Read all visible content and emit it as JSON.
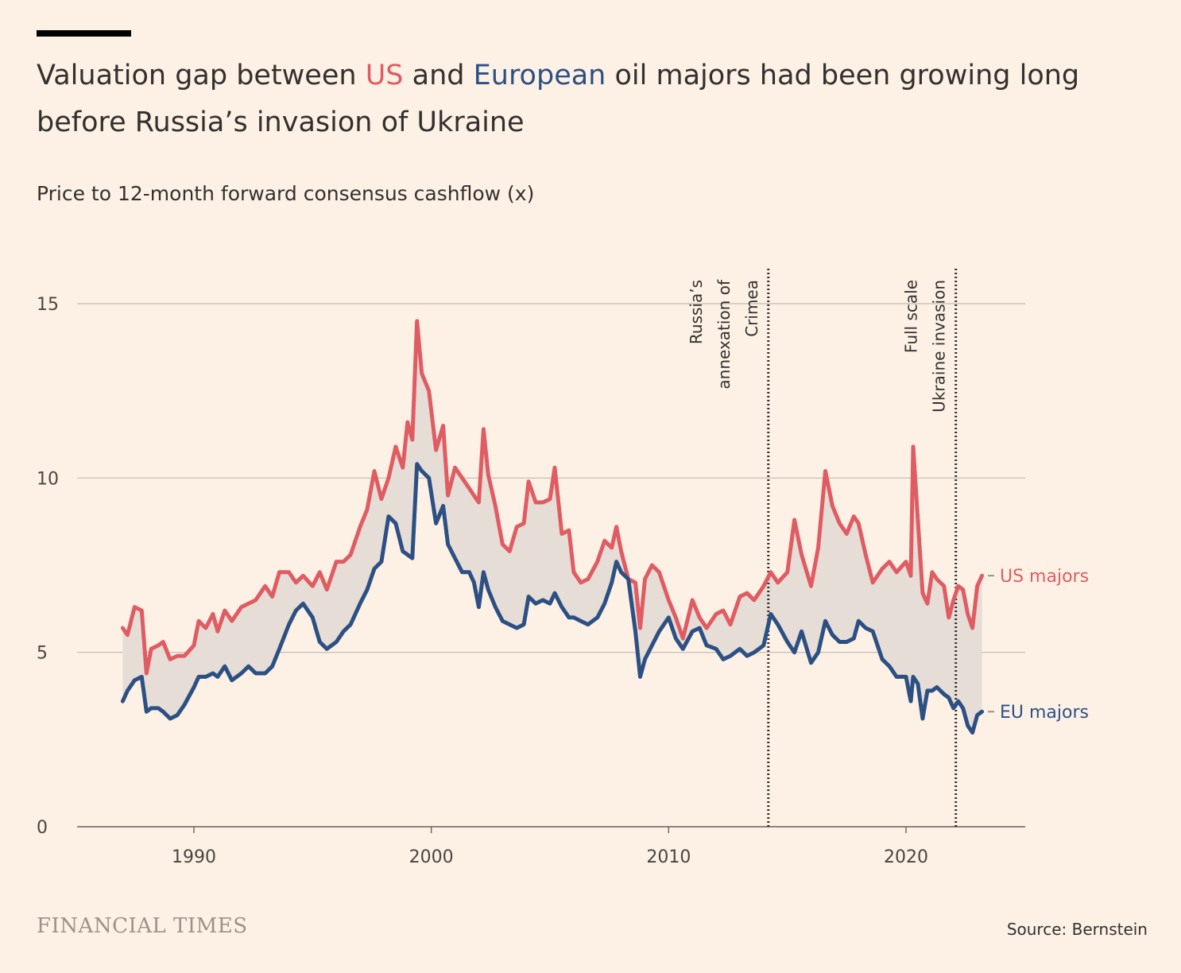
{
  "header": {
    "title_part1": "Valuation gap between ",
    "title_us": "US",
    "title_part2": " and ",
    "title_eu": "European",
    "title_part3": " oil majors had been growing long before Russia’s invasion of Ukraine",
    "subtitle": "Price to 12-month forward consensus cashflow (x)"
  },
  "footer": {
    "brand": "FINANCIAL TIMES",
    "source": "Source: Bernstein"
  },
  "colors": {
    "us": "#e05c63",
    "eu": "#2c5083",
    "gap_fill": "#e6ddd6",
    "grid": "#c2b9b0",
    "axis": "#66605c",
    "annotation_line": "#33302e"
  },
  "chart_data": {
    "type": "line",
    "ylim": [
      0,
      15
    ],
    "xlim": [
      1985,
      2025
    ],
    "yticks": [
      0,
      5,
      10,
      15
    ],
    "xticks": [
      1990,
      2000,
      2010,
      2020
    ],
    "grid": true,
    "area_between_series": true,
    "series": [
      {
        "name": "US majors",
        "color": "#e05c63",
        "points": [
          [
            1987.0,
            5.7
          ],
          [
            1987.2,
            5.5
          ],
          [
            1987.5,
            6.3
          ],
          [
            1987.8,
            6.2
          ],
          [
            1988.0,
            4.4
          ],
          [
            1988.2,
            5.1
          ],
          [
            1988.5,
            5.2
          ],
          [
            1988.7,
            5.3
          ],
          [
            1989.0,
            4.8
          ],
          [
            1989.3,
            4.9
          ],
          [
            1989.6,
            4.9
          ],
          [
            1990.0,
            5.2
          ],
          [
            1990.2,
            5.9
          ],
          [
            1990.5,
            5.7
          ],
          [
            1990.8,
            6.1
          ],
          [
            1991.0,
            5.6
          ],
          [
            1991.3,
            6.2
          ],
          [
            1991.6,
            5.9
          ],
          [
            1992.0,
            6.3
          ],
          [
            1992.3,
            6.4
          ],
          [
            1992.6,
            6.5
          ],
          [
            1993.0,
            6.9
          ],
          [
            1993.3,
            6.6
          ],
          [
            1993.6,
            7.3
          ],
          [
            1994.0,
            7.3
          ],
          [
            1994.3,
            7.0
          ],
          [
            1994.6,
            7.2
          ],
          [
            1995.0,
            6.9
          ],
          [
            1995.3,
            7.3
          ],
          [
            1995.6,
            6.8
          ],
          [
            1996.0,
            7.6
          ],
          [
            1996.3,
            7.6
          ],
          [
            1996.6,
            7.8
          ],
          [
            1997.0,
            8.6
          ],
          [
            1997.3,
            9.1
          ],
          [
            1997.6,
            10.2
          ],
          [
            1997.9,
            9.4
          ],
          [
            1998.2,
            10.0
          ],
          [
            1998.5,
            10.9
          ],
          [
            1998.8,
            10.3
          ],
          [
            1999.0,
            11.6
          ],
          [
            1999.2,
            11.1
          ],
          [
            1999.4,
            14.5
          ],
          [
            1999.6,
            13.0
          ],
          [
            1999.9,
            12.5
          ],
          [
            2000.2,
            10.8
          ],
          [
            2000.5,
            11.5
          ],
          [
            2000.7,
            9.5
          ],
          [
            2001.0,
            10.3
          ],
          [
            2001.3,
            10.0
          ],
          [
            2001.6,
            9.7
          ],
          [
            2001.8,
            9.5
          ],
          [
            2002.0,
            9.3
          ],
          [
            2002.2,
            11.4
          ],
          [
            2002.4,
            10.1
          ],
          [
            2002.7,
            9.2
          ],
          [
            2003.0,
            8.1
          ],
          [
            2003.3,
            7.9
          ],
          [
            2003.6,
            8.6
          ],
          [
            2003.9,
            8.7
          ],
          [
            2004.1,
            9.9
          ],
          [
            2004.4,
            9.3
          ],
          [
            2004.7,
            9.3
          ],
          [
            2005.0,
            9.4
          ],
          [
            2005.2,
            10.3
          ],
          [
            2005.5,
            8.4
          ],
          [
            2005.8,
            8.5
          ],
          [
            2006.0,
            7.3
          ],
          [
            2006.3,
            7.0
          ],
          [
            2006.6,
            7.1
          ],
          [
            2007.0,
            7.6
          ],
          [
            2007.3,
            8.2
          ],
          [
            2007.6,
            8.0
          ],
          [
            2007.8,
            8.6
          ],
          [
            2008.0,
            7.9
          ],
          [
            2008.3,
            7.1
          ],
          [
            2008.6,
            7.0
          ],
          [
            2008.8,
            5.7
          ],
          [
            2009.0,
            7.1
          ],
          [
            2009.3,
            7.5
          ],
          [
            2009.6,
            7.3
          ],
          [
            2010.0,
            6.5
          ],
          [
            2010.3,
            6.0
          ],
          [
            2010.6,
            5.4
          ],
          [
            2011.0,
            6.5
          ],
          [
            2011.3,
            6.0
          ],
          [
            2011.6,
            5.7
          ],
          [
            2012.0,
            6.1
          ],
          [
            2012.3,
            6.2
          ],
          [
            2012.6,
            5.8
          ],
          [
            2013.0,
            6.6
          ],
          [
            2013.3,
            6.7
          ],
          [
            2013.6,
            6.5
          ],
          [
            2014.0,
            6.9
          ],
          [
            2014.3,
            7.3
          ],
          [
            2014.6,
            7.0
          ],
          [
            2015.0,
            7.3
          ],
          [
            2015.3,
            8.8
          ],
          [
            2015.6,
            7.8
          ],
          [
            2016.0,
            6.9
          ],
          [
            2016.3,
            8.0
          ],
          [
            2016.6,
            10.2
          ],
          [
            2016.9,
            9.2
          ],
          [
            2017.2,
            8.7
          ],
          [
            2017.5,
            8.4
          ],
          [
            2017.8,
            8.9
          ],
          [
            2018.0,
            8.7
          ],
          [
            2018.3,
            7.8
          ],
          [
            2018.6,
            7.0
          ],
          [
            2019.0,
            7.4
          ],
          [
            2019.3,
            7.6
          ],
          [
            2019.6,
            7.3
          ],
          [
            2020.0,
            7.6
          ],
          [
            2020.2,
            7.2
          ],
          [
            2020.3,
            10.9
          ],
          [
            2020.5,
            8.8
          ],
          [
            2020.7,
            6.7
          ],
          [
            2020.9,
            6.4
          ],
          [
            2021.1,
            7.3
          ],
          [
            2021.3,
            7.1
          ],
          [
            2021.6,
            6.9
          ],
          [
            2021.8,
            6.0
          ],
          [
            2022.0,
            6.5
          ],
          [
            2022.2,
            6.9
          ],
          [
            2022.4,
            6.8
          ],
          [
            2022.6,
            6.1
          ],
          [
            2022.8,
            5.7
          ],
          [
            2023.0,
            6.9
          ],
          [
            2023.2,
            7.2
          ]
        ]
      },
      {
        "name": "EU majors",
        "color": "#2c5083",
        "points": [
          [
            1987.0,
            3.6
          ],
          [
            1987.2,
            3.9
          ],
          [
            1987.5,
            4.2
          ],
          [
            1987.8,
            4.3
          ],
          [
            1988.0,
            3.3
          ],
          [
            1988.2,
            3.4
          ],
          [
            1988.5,
            3.4
          ],
          [
            1988.7,
            3.3
          ],
          [
            1989.0,
            3.1
          ],
          [
            1989.3,
            3.2
          ],
          [
            1989.6,
            3.5
          ],
          [
            1990.0,
            4.0
          ],
          [
            1990.2,
            4.3
          ],
          [
            1990.5,
            4.3
          ],
          [
            1990.8,
            4.4
          ],
          [
            1991.0,
            4.3
          ],
          [
            1991.3,
            4.6
          ],
          [
            1991.6,
            4.2
          ],
          [
            1992.0,
            4.4
          ],
          [
            1992.3,
            4.6
          ],
          [
            1992.6,
            4.4
          ],
          [
            1993.0,
            4.4
          ],
          [
            1993.3,
            4.6
          ],
          [
            1993.6,
            5.1
          ],
          [
            1994.0,
            5.8
          ],
          [
            1994.3,
            6.2
          ],
          [
            1994.6,
            6.4
          ],
          [
            1995.0,
            6.0
          ],
          [
            1995.3,
            5.3
          ],
          [
            1995.6,
            5.1
          ],
          [
            1996.0,
            5.3
          ],
          [
            1996.3,
            5.6
          ],
          [
            1996.6,
            5.8
          ],
          [
            1997.0,
            6.4
          ],
          [
            1997.3,
            6.8
          ],
          [
            1997.6,
            7.4
          ],
          [
            1997.9,
            7.6
          ],
          [
            1998.2,
            8.9
          ],
          [
            1998.5,
            8.7
          ],
          [
            1998.8,
            7.9
          ],
          [
            1999.0,
            7.8
          ],
          [
            1999.2,
            7.7
          ],
          [
            1999.4,
            10.4
          ],
          [
            1999.6,
            10.2
          ],
          [
            1999.9,
            10.0
          ],
          [
            2000.2,
            8.7
          ],
          [
            2000.5,
            9.2
          ],
          [
            2000.7,
            8.1
          ],
          [
            2001.0,
            7.7
          ],
          [
            2001.3,
            7.3
          ],
          [
            2001.6,
            7.3
          ],
          [
            2001.8,
            7.0
          ],
          [
            2002.0,
            6.3
          ],
          [
            2002.2,
            7.3
          ],
          [
            2002.4,
            6.8
          ],
          [
            2002.7,
            6.3
          ],
          [
            2003.0,
            5.9
          ],
          [
            2003.3,
            5.8
          ],
          [
            2003.6,
            5.7
          ],
          [
            2003.9,
            5.8
          ],
          [
            2004.1,
            6.6
          ],
          [
            2004.4,
            6.4
          ],
          [
            2004.7,
            6.5
          ],
          [
            2005.0,
            6.4
          ],
          [
            2005.2,
            6.7
          ],
          [
            2005.5,
            6.3
          ],
          [
            2005.8,
            6.0
          ],
          [
            2006.0,
            6.0
          ],
          [
            2006.3,
            5.9
          ],
          [
            2006.6,
            5.8
          ],
          [
            2007.0,
            6.0
          ],
          [
            2007.3,
            6.4
          ],
          [
            2007.6,
            7.0
          ],
          [
            2007.8,
            7.6
          ],
          [
            2008.0,
            7.3
          ],
          [
            2008.3,
            7.1
          ],
          [
            2008.6,
            5.6
          ],
          [
            2008.8,
            4.3
          ],
          [
            2009.0,
            4.8
          ],
          [
            2009.3,
            5.2
          ],
          [
            2009.6,
            5.6
          ],
          [
            2010.0,
            6.0
          ],
          [
            2010.3,
            5.4
          ],
          [
            2010.6,
            5.1
          ],
          [
            2011.0,
            5.6
          ],
          [
            2011.3,
            5.7
          ],
          [
            2011.6,
            5.2
          ],
          [
            2012.0,
            5.1
          ],
          [
            2012.3,
            4.8
          ],
          [
            2012.6,
            4.9
          ],
          [
            2013.0,
            5.1
          ],
          [
            2013.3,
            4.9
          ],
          [
            2013.6,
            5.0
          ],
          [
            2014.0,
            5.2
          ],
          [
            2014.3,
            6.1
          ],
          [
            2014.6,
            5.8
          ],
          [
            2015.0,
            5.3
          ],
          [
            2015.3,
            5.0
          ],
          [
            2015.6,
            5.6
          ],
          [
            2016.0,
            4.7
          ],
          [
            2016.3,
            5.0
          ],
          [
            2016.6,
            5.9
          ],
          [
            2016.9,
            5.5
          ],
          [
            2017.2,
            5.3
          ],
          [
            2017.5,
            5.3
          ],
          [
            2017.8,
            5.4
          ],
          [
            2018.0,
            5.9
          ],
          [
            2018.3,
            5.7
          ],
          [
            2018.6,
            5.6
          ],
          [
            2019.0,
            4.8
          ],
          [
            2019.3,
            4.6
          ],
          [
            2019.6,
            4.3
          ],
          [
            2020.0,
            4.3
          ],
          [
            2020.2,
            3.6
          ],
          [
            2020.3,
            4.3
          ],
          [
            2020.5,
            4.1
          ],
          [
            2020.7,
            3.1
          ],
          [
            2020.9,
            3.9
          ],
          [
            2021.1,
            3.9
          ],
          [
            2021.3,
            4.0
          ],
          [
            2021.6,
            3.8
          ],
          [
            2021.8,
            3.7
          ],
          [
            2022.0,
            3.4
          ],
          [
            2022.2,
            3.6
          ],
          [
            2022.4,
            3.4
          ],
          [
            2022.6,
            2.9
          ],
          [
            2022.8,
            2.7
          ],
          [
            2023.0,
            3.2
          ],
          [
            2023.2,
            3.3
          ]
        ]
      }
    ],
    "series_labels": [
      {
        "text": "US majors",
        "value": 7.2
      },
      {
        "text": "EU majors",
        "value": 3.3
      }
    ],
    "annotations": [
      {
        "x": 2014.2,
        "label_lines": [
          "Russia’s",
          "annexation of",
          "Crimea"
        ]
      },
      {
        "x": 2022.1,
        "label_lines": [
          "Full scale",
          "Ukraine invasion"
        ]
      }
    ]
  }
}
